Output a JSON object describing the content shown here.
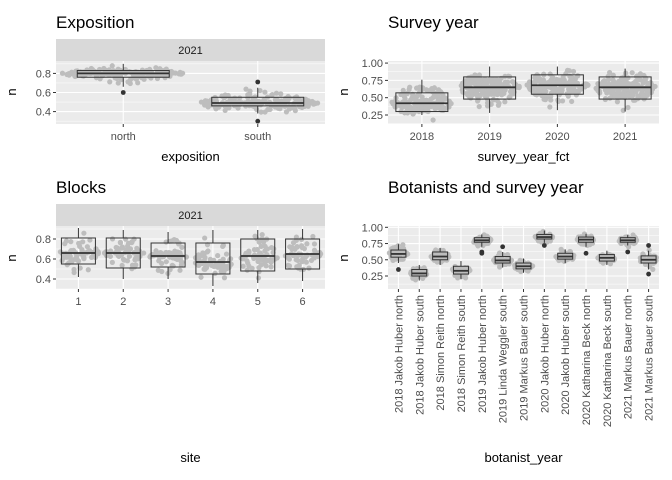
{
  "chart_data": [
    {
      "type": "boxplot",
      "title": "Exposition",
      "facet": "2021",
      "xlabel": "exposition",
      "ylabel": "n",
      "categories": [
        "north",
        "south"
      ],
      "ylim": [
        0.27,
        0.93
      ],
      "yticks": [
        0.4,
        0.6,
        0.8
      ],
      "boxes": [
        {
          "min": 0.66,
          "q1": 0.76,
          "median": 0.8,
          "q3": 0.83,
          "max": 0.9,
          "outliers": [
            0.6
          ],
          "lo": 0.68,
          "hi": 0.89,
          "n": 170
        },
        {
          "min": 0.38,
          "q1": 0.46,
          "median": 0.49,
          "q3": 0.55,
          "max": 0.65,
          "outliers": [
            0.71,
            0.3
          ],
          "lo": 0.37,
          "hi": 0.66,
          "n": 190
        }
      ]
    },
    {
      "type": "boxplot",
      "title": "Survey year",
      "xlabel": "survey_year_fct",
      "ylabel": "n",
      "categories": [
        "2018",
        "2019",
        "2020",
        "2021"
      ],
      "ylim": [
        0.12,
        1.03
      ],
      "yticks": [
        0.25,
        0.5,
        0.75,
        1.0
      ],
      "ytick_labels": [
        "0.25",
        "0.50",
        "0.75",
        "1.00"
      ],
      "boxes": [
        {
          "min": 0.25,
          "q1": 0.3,
          "median": 0.42,
          "q3": 0.57,
          "max": 0.76,
          "outliers": [],
          "lo": 0.15,
          "hi": 0.8,
          "n": 180
        },
        {
          "min": 0.28,
          "q1": 0.48,
          "median": 0.65,
          "q3": 0.8,
          "max": 0.95,
          "outliers": [],
          "lo": 0.25,
          "hi": 0.95,
          "n": 190
        },
        {
          "min": 0.32,
          "q1": 0.55,
          "median": 0.68,
          "q3": 0.83,
          "max": 0.95,
          "outliers": [],
          "lo": 0.3,
          "hi": 0.97,
          "n": 190
        },
        {
          "min": 0.3,
          "q1": 0.48,
          "median": 0.65,
          "q3": 0.8,
          "max": 0.92,
          "outliers": [],
          "lo": 0.25,
          "hi": 0.93,
          "n": 180
        }
      ]
    },
    {
      "type": "boxplot",
      "title": "Blocks",
      "facet": "2021",
      "xlabel": "site",
      "ylabel": "n",
      "categories": [
        "1",
        "2",
        "3",
        "4",
        "5",
        "6"
      ],
      "ylim": [
        0.3,
        0.93
      ],
      "yticks": [
        0.4,
        0.6,
        0.8
      ],
      "boxes": [
        {
          "min": 0.42,
          "q1": 0.55,
          "median": 0.66,
          "q3": 0.81,
          "max": 0.91,
          "outliers": [],
          "lo": 0.4,
          "hi": 0.91,
          "n": 60
        },
        {
          "min": 0.4,
          "q1": 0.51,
          "median": 0.66,
          "q3": 0.81,
          "max": 0.89,
          "outliers": [],
          "lo": 0.4,
          "hi": 0.9,
          "n": 60
        },
        {
          "min": 0.4,
          "q1": 0.52,
          "median": 0.63,
          "q3": 0.76,
          "max": 0.87,
          "outliers": [],
          "lo": 0.4,
          "hi": 0.88,
          "n": 60
        },
        {
          "min": 0.33,
          "q1": 0.45,
          "median": 0.57,
          "q3": 0.76,
          "max": 0.89,
          "outliers": [],
          "lo": 0.33,
          "hi": 0.89,
          "n": 60
        },
        {
          "min": 0.36,
          "q1": 0.48,
          "median": 0.63,
          "q3": 0.8,
          "max": 0.89,
          "outliers": [],
          "lo": 0.36,
          "hi": 0.9,
          "n": 60
        },
        {
          "min": 0.38,
          "q1": 0.5,
          "median": 0.65,
          "q3": 0.8,
          "max": 0.9,
          "outliers": [],
          "lo": 0.37,
          "hi": 0.9,
          "n": 60
        }
      ]
    },
    {
      "type": "boxplot",
      "title": "Botanists and survey year",
      "xlabel": "botanist_year",
      "ylabel": "n",
      "categories": [
        "2018 Jakob Huber north",
        "2018 Jakob Huber south",
        "2018 Simon Reith north",
        "2018 Simon Reith south",
        "2019 Jakob Huber north",
        "2019 Linda Weggler south",
        "2019 Markus Bauer south",
        "2020 Jakob Huber north",
        "2020 Jakob Huber south",
        "2020 Katharina Beck north",
        "2020 Katharina Beck south",
        "2021 Markus Bauer north",
        "2021 Markus Bauer south"
      ],
      "ylim": [
        0.05,
        1.02
      ],
      "yticks": [
        0.25,
        0.5,
        0.75,
        1.0
      ],
      "ytick_labels": [
        "0.25",
        "0.50",
        "0.75",
        "1.00"
      ],
      "boxes": [
        {
          "min": 0.45,
          "q1": 0.54,
          "median": 0.59,
          "q3": 0.65,
          "max": 0.74,
          "outliers": [
            0.35
          ],
          "lo": 0.33,
          "hi": 0.76,
          "n": 50
        },
        {
          "min": 0.18,
          "q1": 0.25,
          "median": 0.29,
          "q3": 0.35,
          "max": 0.42,
          "outliers": [],
          "lo": 0.12,
          "hi": 0.46,
          "n": 50
        },
        {
          "min": 0.42,
          "q1": 0.5,
          "median": 0.55,
          "q3": 0.62,
          "max": 0.68,
          "outliers": [],
          "lo": 0.4,
          "hi": 0.72,
          "n": 50
        },
        {
          "min": 0.2,
          "q1": 0.28,
          "median": 0.33,
          "q3": 0.4,
          "max": 0.48,
          "outliers": [],
          "lo": 0.15,
          "hi": 0.5,
          "n": 50
        },
        {
          "min": 0.7,
          "q1": 0.77,
          "median": 0.8,
          "q3": 0.84,
          "max": 0.89,
          "outliers": [
            0.62,
            0.6
          ],
          "lo": 0.65,
          "hi": 0.92,
          "n": 50
        },
        {
          "min": 0.38,
          "q1": 0.45,
          "median": 0.49,
          "q3": 0.55,
          "max": 0.62,
          "outliers": [
            0.7
          ],
          "lo": 0.35,
          "hi": 0.68,
          "n": 50
        },
        {
          "min": 0.3,
          "q1": 0.36,
          "median": 0.4,
          "q3": 0.45,
          "max": 0.52,
          "outliers": [],
          "lo": 0.27,
          "hi": 0.55,
          "n": 50
        },
        {
          "min": 0.76,
          "q1": 0.82,
          "median": 0.85,
          "q3": 0.89,
          "max": 0.95,
          "outliers": [
            0.72
          ],
          "lo": 0.72,
          "hi": 0.97,
          "n": 50
        },
        {
          "min": 0.45,
          "q1": 0.51,
          "median": 0.55,
          "q3": 0.6,
          "max": 0.66,
          "outliers": [],
          "lo": 0.42,
          "hi": 0.7,
          "n": 50
        },
        {
          "min": 0.7,
          "q1": 0.77,
          "median": 0.81,
          "q3": 0.85,
          "max": 0.9,
          "outliers": [
            0.6
          ],
          "lo": 0.65,
          "hi": 0.92,
          "n": 50
        },
        {
          "min": 0.42,
          "q1": 0.48,
          "median": 0.53,
          "q3": 0.58,
          "max": 0.64,
          "outliers": [],
          "lo": 0.4,
          "hi": 0.66,
          "n": 50
        },
        {
          "min": 0.72,
          "q1": 0.77,
          "median": 0.8,
          "q3": 0.84,
          "max": 0.88,
          "outliers": [
            0.62
          ],
          "lo": 0.65,
          "hi": 0.92,
          "n": 50
        },
        {
          "min": 0.35,
          "q1": 0.45,
          "median": 0.5,
          "q3": 0.56,
          "max": 0.64,
          "outliers": [
            0.28,
            0.72
          ],
          "lo": 0.27,
          "hi": 0.7,
          "n": 50
        }
      ]
    }
  ],
  "colors": {
    "panel_bg": "#ebebeb",
    "grid": "#ffffff",
    "strip_bg": "#d9d9d9",
    "points": "#bdbdbd",
    "box": "#333333"
  }
}
